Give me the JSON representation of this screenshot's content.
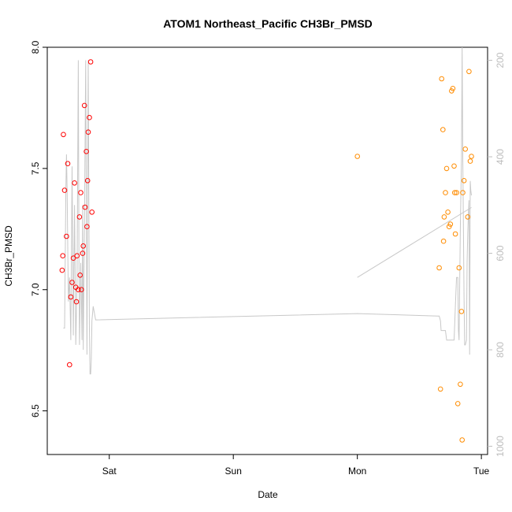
{
  "chart_data": {
    "type": "scatter",
    "title": "ATOM1 Northeast_Pacific CH3Br_PMSD",
    "xlabel": "Date",
    "ylabel": "CH3Br_PMSD",
    "x_ticks": [
      "Sat",
      "Sun",
      "Mon",
      "Tue"
    ],
    "y_ticks": [
      "6.5",
      "7.0",
      "7.5",
      "8.0"
    ],
    "y_right_ticks": [
      "200",
      "400",
      "600",
      "800",
      "1000"
    ],
    "xlim_days": [
      -0.5,
      3.05
    ],
    "ylim": [
      6.32,
      8.0
    ],
    "y_right_lim": [
      1017,
      173
    ],
    "grid": false,
    "colors": {
      "series_red": "#ff0000",
      "series_orange": "#ff8c00",
      "line": "#c8c8c8",
      "axis_right": "#bdbdbd"
    },
    "series": [
      {
        "color": "#ff0000",
        "points": [
          [
            -0.38,
            7.08
          ],
          [
            -0.375,
            7.14
          ],
          [
            -0.37,
            7.64
          ],
          [
            -0.36,
            7.41
          ],
          [
            -0.345,
            7.22
          ],
          [
            -0.335,
            7.52
          ],
          [
            -0.32,
            6.69
          ],
          [
            -0.31,
            6.97
          ],
          [
            -0.3,
            7.03
          ],
          [
            -0.29,
            7.13
          ],
          [
            -0.28,
            7.44
          ],
          [
            -0.27,
            7.01
          ],
          [
            -0.265,
            6.95
          ],
          [
            -0.26,
            7.14
          ],
          [
            -0.25,
            7.0
          ],
          [
            -0.24,
            7.3
          ],
          [
            -0.235,
            7.06
          ],
          [
            -0.23,
            7.4
          ],
          [
            -0.225,
            7.0
          ],
          [
            -0.215,
            7.15
          ],
          [
            -0.21,
            7.18
          ],
          [
            -0.2,
            7.76
          ],
          [
            -0.195,
            7.34
          ],
          [
            -0.185,
            7.57
          ],
          [
            -0.18,
            7.26
          ],
          [
            -0.175,
            7.45
          ],
          [
            -0.17,
            7.65
          ],
          [
            -0.16,
            7.71
          ],
          [
            -0.15,
            7.94
          ],
          [
            -0.14,
            7.32
          ]
        ]
      },
      {
        "color": "#ff8c00",
        "points": [
          [
            2.0,
            7.55
          ],
          [
            2.66,
            7.09
          ],
          [
            2.67,
            6.59
          ],
          [
            2.68,
            7.87
          ],
          [
            2.69,
            7.66
          ],
          [
            2.695,
            7.2
          ],
          [
            2.7,
            7.3
          ],
          [
            2.71,
            7.4
          ],
          [
            2.72,
            7.5
          ],
          [
            2.73,
            7.32
          ],
          [
            2.74,
            7.26
          ],
          [
            2.75,
            7.27
          ],
          [
            2.76,
            7.82
          ],
          [
            2.77,
            7.83
          ],
          [
            2.78,
            7.51
          ],
          [
            2.785,
            7.4
          ],
          [
            2.79,
            7.23
          ],
          [
            2.8,
            7.4
          ],
          [
            2.81,
            6.53
          ],
          [
            2.82,
            7.09
          ],
          [
            2.83,
            6.61
          ],
          [
            2.84,
            6.91
          ],
          [
            2.845,
            6.38
          ],
          [
            2.85,
            7.4
          ],
          [
            2.86,
            7.45
          ],
          [
            2.87,
            7.58
          ],
          [
            2.89,
            7.3
          ],
          [
            2.9,
            7.9
          ],
          [
            2.91,
            7.53
          ],
          [
            2.92,
            7.55
          ]
        ]
      }
    ],
    "line": {
      "color": "#c8c8c8",
      "points": [
        [
          -0.37,
          755
        ],
        [
          -0.36,
          755
        ],
        [
          -0.35,
          470
        ],
        [
          -0.345,
          395
        ],
        [
          -0.34,
          470
        ],
        [
          -0.33,
          700
        ],
        [
          -0.32,
          650
        ],
        [
          -0.31,
          780
        ],
        [
          -0.3,
          420
        ],
        [
          -0.29,
          770
        ],
        [
          -0.28,
          500
        ],
        [
          -0.27,
          790
        ],
        [
          -0.26,
          660
        ],
        [
          -0.25,
          200
        ],
        [
          -0.245,
          600
        ],
        [
          -0.24,
          790
        ],
        [
          -0.23,
          620
        ],
        [
          -0.22,
          780
        ],
        [
          -0.215,
          500
        ],
        [
          -0.21,
          800
        ],
        [
          -0.2,
          550
        ],
        [
          -0.19,
          200
        ],
        [
          -0.185,
          500
        ],
        [
          -0.18,
          810
        ],
        [
          -0.17,
          200
        ],
        [
          -0.165,
          500
        ],
        [
          -0.16,
          760
        ],
        [
          -0.155,
          850
        ],
        [
          -0.15,
          850
        ],
        [
          -0.145,
          820
        ],
        [
          -0.14,
          740
        ],
        [
          -0.13,
          710
        ],
        [
          -0.11,
          738
        ],
        [
          2.0,
          725
        ],
        [
          2.65,
          730
        ],
        [
          2.66,
          730
        ],
        [
          2.67,
          740
        ],
        [
          2.675,
          760
        ],
        [
          2.7,
          760
        ],
        [
          2.71,
          760
        ],
        [
          2.72,
          780
        ],
        [
          2.75,
          780
        ],
        [
          2.77,
          780
        ],
        [
          2.78,
          780
        ],
        [
          2.79,
          710
        ],
        [
          2.8,
          650
        ],
        [
          2.81,
          650
        ],
        [
          2.815,
          760
        ],
        [
          2.82,
          780
        ],
        [
          2.83,
          550
        ],
        [
          2.84,
          400
        ],
        [
          2.845,
          173
        ],
        [
          2.85,
          400
        ],
        [
          2.855,
          540
        ],
        [
          2.86,
          690
        ],
        [
          2.865,
          790
        ],
        [
          2.87,
          790
        ],
        [
          2.88,
          780
        ],
        [
          2.885,
          620
        ],
        [
          2.89,
          560
        ],
        [
          2.895,
          520
        ],
        [
          2.9,
          490
        ],
        [
          2.905,
          810
        ],
        [
          2.91,
          450
        ],
        [
          2.915,
          470
        ],
        [
          2.92,
          480
        ]
      ]
    },
    "line_segment": [
      [
        2.0,
        650
      ],
      [
        2.92,
        505
      ]
    ]
  }
}
